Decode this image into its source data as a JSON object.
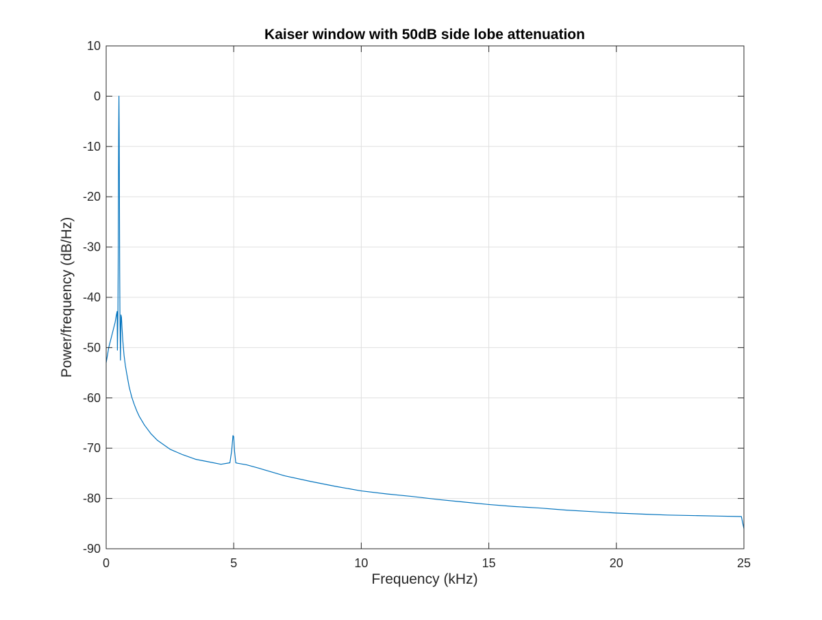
{
  "chart_data": {
    "type": "line",
    "title": "Kaiser window with 50dB side lobe attenuation",
    "xlabel": "Frequency (kHz)",
    "ylabel": "Power/frequency (dB/Hz)",
    "xlim": [
      0,
      25
    ],
    "ylim": [
      -90,
      10
    ],
    "xticks": [
      0,
      5,
      10,
      15,
      20,
      25
    ],
    "yticks": [
      10,
      0,
      -10,
      -20,
      -30,
      -40,
      -50,
      -60,
      -70,
      -80,
      -90
    ],
    "xtick_labels": [
      "0",
      "5",
      "10",
      "15",
      "20",
      "25"
    ],
    "ytick_labels": [
      "10",
      "0",
      "-10",
      "-20",
      "-30",
      "-40",
      "-50",
      "-60",
      "-70",
      "-80",
      "-90"
    ],
    "grid": true,
    "series": [
      {
        "color": "#0072BD",
        "x": [
          0,
          0.05,
          0.1,
          0.15,
          0.2,
          0.25,
          0.3,
          0.35,
          0.4,
          0.43,
          0.44,
          0.46,
          0.47,
          0.48,
          0.49,
          0.5,
          0.51,
          0.52,
          0.53,
          0.54,
          0.56,
          0.57,
          0.58,
          0.6,
          0.62,
          0.65,
          0.7,
          0.75,
          0.8,
          0.9,
          1.0,
          1.1,
          1.2,
          1.3,
          1.5,
          1.75,
          2.0,
          2.5,
          3.0,
          3.5,
          4.0,
          4.5,
          4.85,
          4.92,
          4.97,
          5.0,
          5.03,
          5.08,
          5.15,
          5.5,
          6.0,
          7.0,
          8.0,
          9.0,
          10.0,
          11.0,
          12.0,
          13.0,
          14.0,
          15.0,
          16.0,
          17.0,
          18.0,
          19.0,
          20.0,
          21.0,
          22.0,
          23.0,
          24.0,
          24.9,
          25.0
        ],
        "y": [
          -53,
          -51.5,
          -50,
          -49,
          -48,
          -47,
          -46,
          -45,
          -43.5,
          -42.8,
          -50.5,
          -44,
          -35,
          -20,
          -7,
          0,
          -7,
          -20,
          -35,
          -44,
          -52.5,
          -47,
          -43.5,
          -44,
          -46,
          -48.5,
          -51.5,
          -53.5,
          -55,
          -57.8,
          -59.8,
          -61.3,
          -62.6,
          -63.7,
          -65.4,
          -67.1,
          -68.4,
          -70.2,
          -71.3,
          -72.2,
          -72.7,
          -73.2,
          -72.9,
          -70.5,
          -67.5,
          -67.7,
          -70.5,
          -72.9,
          -73.0,
          -73.3,
          -74.0,
          -75.5,
          -76.6,
          -77.6,
          -78.5,
          -79.1,
          -79.6,
          -80.2,
          -80.7,
          -81.2,
          -81.6,
          -81.9,
          -82.3,
          -82.6,
          -82.9,
          -83.1,
          -83.3,
          -83.4,
          -83.5,
          -83.6,
          -86
        ]
      }
    ]
  }
}
